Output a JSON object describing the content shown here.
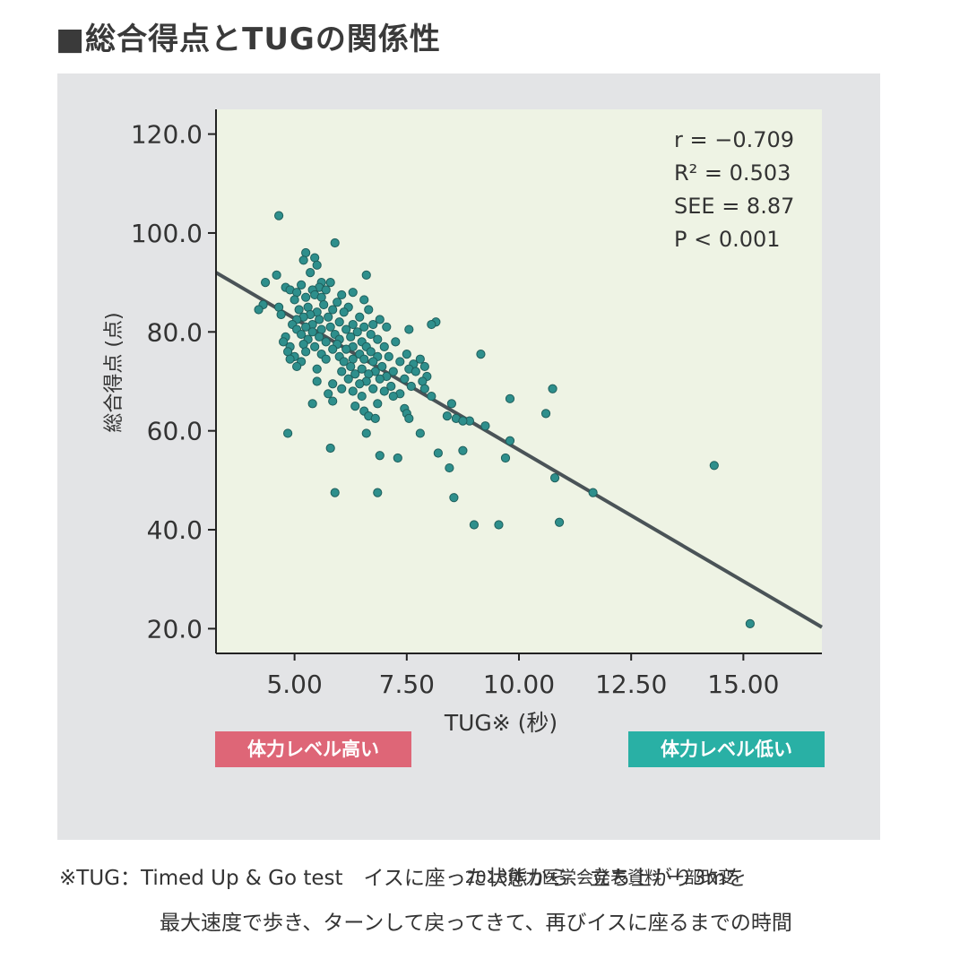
{
  "title": "■総合得点とTUGの関係性",
  "colors": {
    "panel_bg": "#e3e4e6",
    "plot_bg": "#eef3e4",
    "point": "#2e8f8c",
    "point_stroke": "#1f5f5c",
    "regression_line": "#4a5357",
    "badge_high": "#de6677",
    "badge_low": "#29b0a5"
  },
  "badges": {
    "high": "体力レベル高い",
    "low": "体力レベル低い"
  },
  "source": "2013体力医学会発表資料 一部改変",
  "footnote": {
    "line1": "※TUG：Timed Up & Go test　イスに座った状態から、立ち上がり3mを",
    "line2": "最大速度で歩き、ターンして戻ってきて、再びイスに座るまでの時間"
  },
  "chart_data": {
    "type": "scatter",
    "xlabel": "TUG※ (秒)",
    "ylabel": "総合得点 (点)",
    "xlim": [
      3.25,
      16.75
    ],
    "ylim": [
      15,
      125
    ],
    "x_ticks": [
      5.0,
      7.5,
      10.0,
      12.5,
      15.0
    ],
    "x_tick_labels": [
      "5.00",
      "7.50",
      "10.00",
      "12.50",
      "15.00"
    ],
    "y_ticks": [
      20,
      40,
      60,
      80,
      100,
      120
    ],
    "y_tick_labels": [
      "20.0",
      "40.0",
      "60.0",
      "80.0",
      "100.0",
      "120.0"
    ],
    "grid": false,
    "annotation": [
      "r = −0.709",
      "R² = 0.503",
      "SEE = 8.87",
      "P < 0.001"
    ],
    "regression_line": {
      "x": [
        3.25,
        16.75
      ],
      "y": [
        92.0,
        20.3
      ]
    },
    "points": [
      [
        4.65,
        103.5
      ],
      [
        5.9,
        98.0
      ],
      [
        5.25,
        96.0
      ],
      [
        5.45,
        95.0
      ],
      [
        5.2,
        94.5
      ],
      [
        5.5,
        93.5
      ],
      [
        5.35,
        92.0
      ],
      [
        4.6,
        91.5
      ],
      [
        6.6,
        91.5
      ],
      [
        4.35,
        90.0
      ],
      [
        5.6,
        90.0
      ],
      [
        5.8,
        90.0
      ],
      [
        5.15,
        89.5
      ],
      [
        5.55,
        89.0
      ],
      [
        4.8,
        89.0
      ],
      [
        5.4,
        88.5
      ],
      [
        4.9,
        88.5
      ],
      [
        5.7,
        88.5
      ],
      [
        5.05,
        88.0
      ],
      [
        6.3,
        88.0
      ],
      [
        5.45,
        87.5
      ],
      [
        5.25,
        87.0
      ],
      [
        6.05,
        87.5
      ],
      [
        5.6,
        87.0
      ],
      [
        5.0,
        86.5
      ],
      [
        6.55,
        86.5
      ],
      [
        5.95,
        86.0
      ],
      [
        4.3,
        85.5
      ],
      [
        5.65,
        85.5
      ],
      [
        6.2,
        85.0
      ],
      [
        4.65,
        85.0
      ],
      [
        5.3,
        85.0
      ],
      [
        4.2,
        84.5
      ],
      [
        5.1,
        84.5
      ],
      [
        5.85,
        84.5
      ],
      [
        6.65,
        84.5
      ],
      [
        5.5,
        84.0
      ],
      [
        6.1,
        84.0
      ],
      [
        4.7,
        83.5
      ],
      [
        5.35,
        83.5
      ],
      [
        5.2,
        83.0
      ],
      [
        5.75,
        83.0
      ],
      [
        6.45,
        83.0
      ],
      [
        6.9,
        82.5
      ],
      [
        5.05,
        82.5
      ],
      [
        5.55,
        82.5
      ],
      [
        6.0,
        82.0
      ],
      [
        8.15,
        82.0
      ],
      [
        4.95,
        81.5
      ],
      [
        5.4,
        81.5
      ],
      [
        6.3,
        81.5
      ],
      [
        6.75,
        81.5
      ],
      [
        8.05,
        81.5
      ],
      [
        5.25,
        81.0
      ],
      [
        5.8,
        81.0
      ],
      [
        6.55,
        81.0
      ],
      [
        7.05,
        81.0
      ],
      [
        5.05,
        80.5
      ],
      [
        5.6,
        80.5
      ],
      [
        6.15,
        80.5
      ],
      [
        7.55,
        80.5
      ],
      [
        5.4,
        80.0
      ],
      [
        6.4,
        80.0
      ],
      [
        5.15,
        79.5
      ],
      [
        5.9,
        79.5
      ],
      [
        6.7,
        79.5
      ],
      [
        4.8,
        79.0
      ],
      [
        5.55,
        79.0
      ],
      [
        6.25,
        79.0
      ],
      [
        5.3,
        78.5
      ],
      [
        6.0,
        78.5
      ],
      [
        6.85,
        78.5
      ],
      [
        4.75,
        78.0
      ],
      [
        5.7,
        78.0
      ],
      [
        6.5,
        78.0
      ],
      [
        7.25,
        78.0
      ],
      [
        5.2,
        77.5
      ],
      [
        5.95,
        77.5
      ],
      [
        6.6,
        77.0
      ],
      [
        4.9,
        77.0
      ],
      [
        5.45,
        77.0
      ],
      [
        6.3,
        77.0
      ],
      [
        7.0,
        77.0
      ],
      [
        5.85,
        76.5
      ],
      [
        6.15,
        76.5
      ],
      [
        6.7,
        76.0
      ],
      [
        4.85,
        76.0
      ],
      [
        5.25,
        76.0
      ],
      [
        5.6,
        75.5
      ],
      [
        6.45,
        75.5
      ],
      [
        7.5,
        75.5
      ],
      [
        9.15,
        75.5
      ],
      [
        5.0,
        75.0
      ],
      [
        6.0,
        75.0
      ],
      [
        6.85,
        75.0
      ],
      [
        7.1,
        75.0
      ],
      [
        4.9,
        74.5
      ],
      [
        5.7,
        74.5
      ],
      [
        6.3,
        74.5
      ],
      [
        6.55,
        74.5
      ],
      [
        7.8,
        74.5
      ],
      [
        5.15,
        74.0
      ],
      [
        6.1,
        74.0
      ],
      [
        6.75,
        74.0
      ],
      [
        7.35,
        74.0
      ],
      [
        7.65,
        73.5
      ],
      [
        5.05,
        73.0
      ],
      [
        6.25,
        73.0
      ],
      [
        6.95,
        73.0
      ],
      [
        7.9,
        73.0
      ],
      [
        5.5,
        72.5
      ],
      [
        6.5,
        72.5
      ],
      [
        7.55,
        72.5
      ],
      [
        6.05,
        72.0
      ],
      [
        6.8,
        72.0
      ],
      [
        7.2,
        72.0
      ],
      [
        7.7,
        72.0
      ],
      [
        6.35,
        71.5
      ],
      [
        6.65,
        71.5
      ],
      [
        7.05,
        71.0
      ],
      [
        7.95,
        71.0
      ],
      [
        6.2,
        70.5
      ],
      [
        6.9,
        70.5
      ],
      [
        7.45,
        70.5
      ],
      [
        5.5,
        70.0
      ],
      [
        6.6,
        70.0
      ],
      [
        7.85,
        70.0
      ],
      [
        5.85,
        69.5
      ],
      [
        6.45,
        69.5
      ],
      [
        7.15,
        69.0
      ],
      [
        7.6,
        69.0
      ],
      [
        6.05,
        68.5
      ],
      [
        6.75,
        68.5
      ],
      [
        7.9,
        68.5
      ],
      [
        10.75,
        68.5
      ],
      [
        6.3,
        68.0
      ],
      [
        7.0,
        68.0
      ],
      [
        5.75,
        67.5
      ],
      [
        7.35,
        67.5
      ],
      [
        6.5,
        67.0
      ],
      [
        7.2,
        67.0
      ],
      [
        8.05,
        67.0
      ],
      [
        9.8,
        66.5
      ],
      [
        5.85,
        66.0
      ],
      [
        6.85,
        65.5
      ],
      [
        5.4,
        65.5
      ],
      [
        8.5,
        65.5
      ],
      [
        6.35,
        65.0
      ],
      [
        7.45,
        64.5
      ],
      [
        6.55,
        64.0
      ],
      [
        7.5,
        63.5
      ],
      [
        10.6,
        63.5
      ],
      [
        6.65,
        63.0
      ],
      [
        8.4,
        63.0
      ],
      [
        6.8,
        62.5
      ],
      [
        7.55,
        62.5
      ],
      [
        8.6,
        62.5
      ],
      [
        8.9,
        62.0
      ],
      [
        8.75,
        62.0
      ],
      [
        9.25,
        61.0
      ],
      [
        4.85,
        59.5
      ],
      [
        6.6,
        59.5
      ],
      [
        7.8,
        59.5
      ],
      [
        9.8,
        58.0
      ],
      [
        5.8,
        56.5
      ],
      [
        8.75,
        56.0
      ],
      [
        8.2,
        55.5
      ],
      [
        6.9,
        55.0
      ],
      [
        7.3,
        54.5
      ],
      [
        9.7,
        54.5
      ],
      [
        8.45,
        52.5
      ],
      [
        14.35,
        53.0
      ],
      [
        10.8,
        50.5
      ],
      [
        5.9,
        47.5
      ],
      [
        6.85,
        47.5
      ],
      [
        11.65,
        47.5
      ],
      [
        8.55,
        46.5
      ],
      [
        10.9,
        41.5
      ],
      [
        9.0,
        41.0
      ],
      [
        9.55,
        41.0
      ],
      [
        15.15,
        21.0
      ]
    ]
  }
}
